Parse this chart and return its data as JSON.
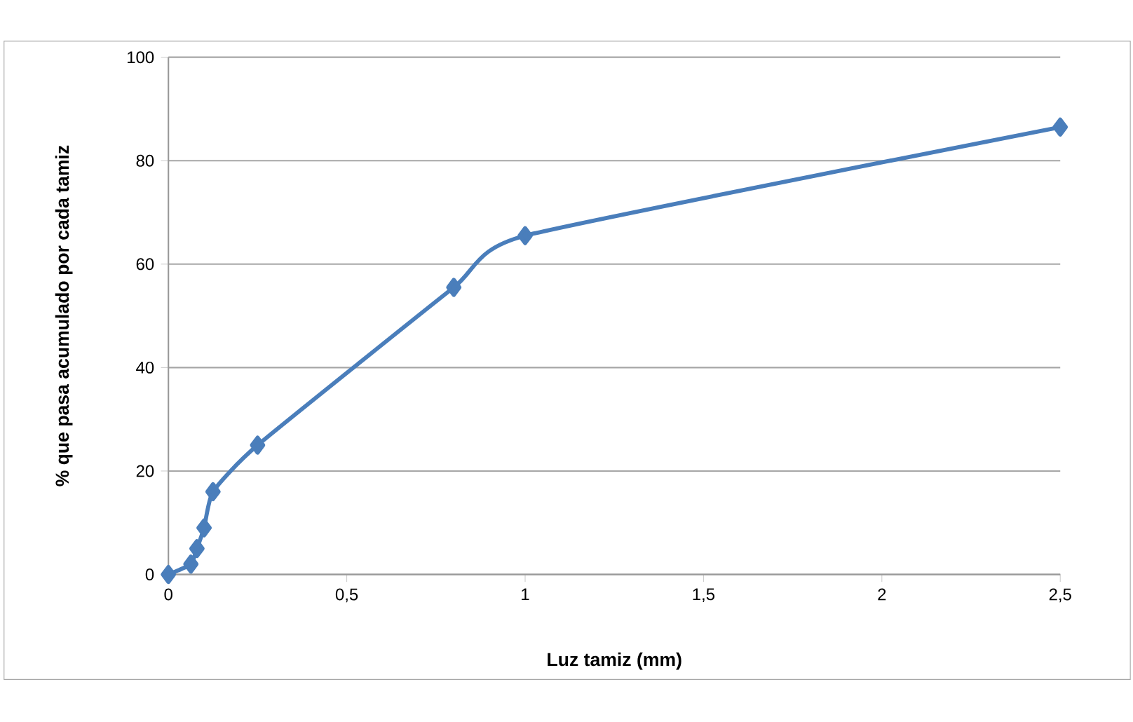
{
  "chart_data": {
    "type": "line",
    "xlabel": "Luz tamiz (mm)",
    "ylabel": "% que pasa acumulado por cada tamiz",
    "x": [
      0,
      0.063,
      0.08,
      0.1,
      0.125,
      0.25,
      0.8,
      1,
      2.5
    ],
    "values": [
      0,
      2,
      5,
      9,
      16,
      25,
      55.5,
      65.5,
      86.5
    ],
    "color": "#4a7ebb",
    "marker": "diamond",
    "grid": "y",
    "xlim": [
      0,
      2.5
    ],
    "ylim": [
      0,
      100
    ],
    "xticks": [
      0,
      {
        "value": 0.5,
        "label": "0,5"
      },
      1,
      {
        "value": 1.5,
        "label": "1,5"
      },
      2,
      {
        "value": 2.5,
        "label": "2,5"
      }
    ],
    "yticks": [
      0,
      20,
      40,
      60,
      80,
      100
    ]
  }
}
